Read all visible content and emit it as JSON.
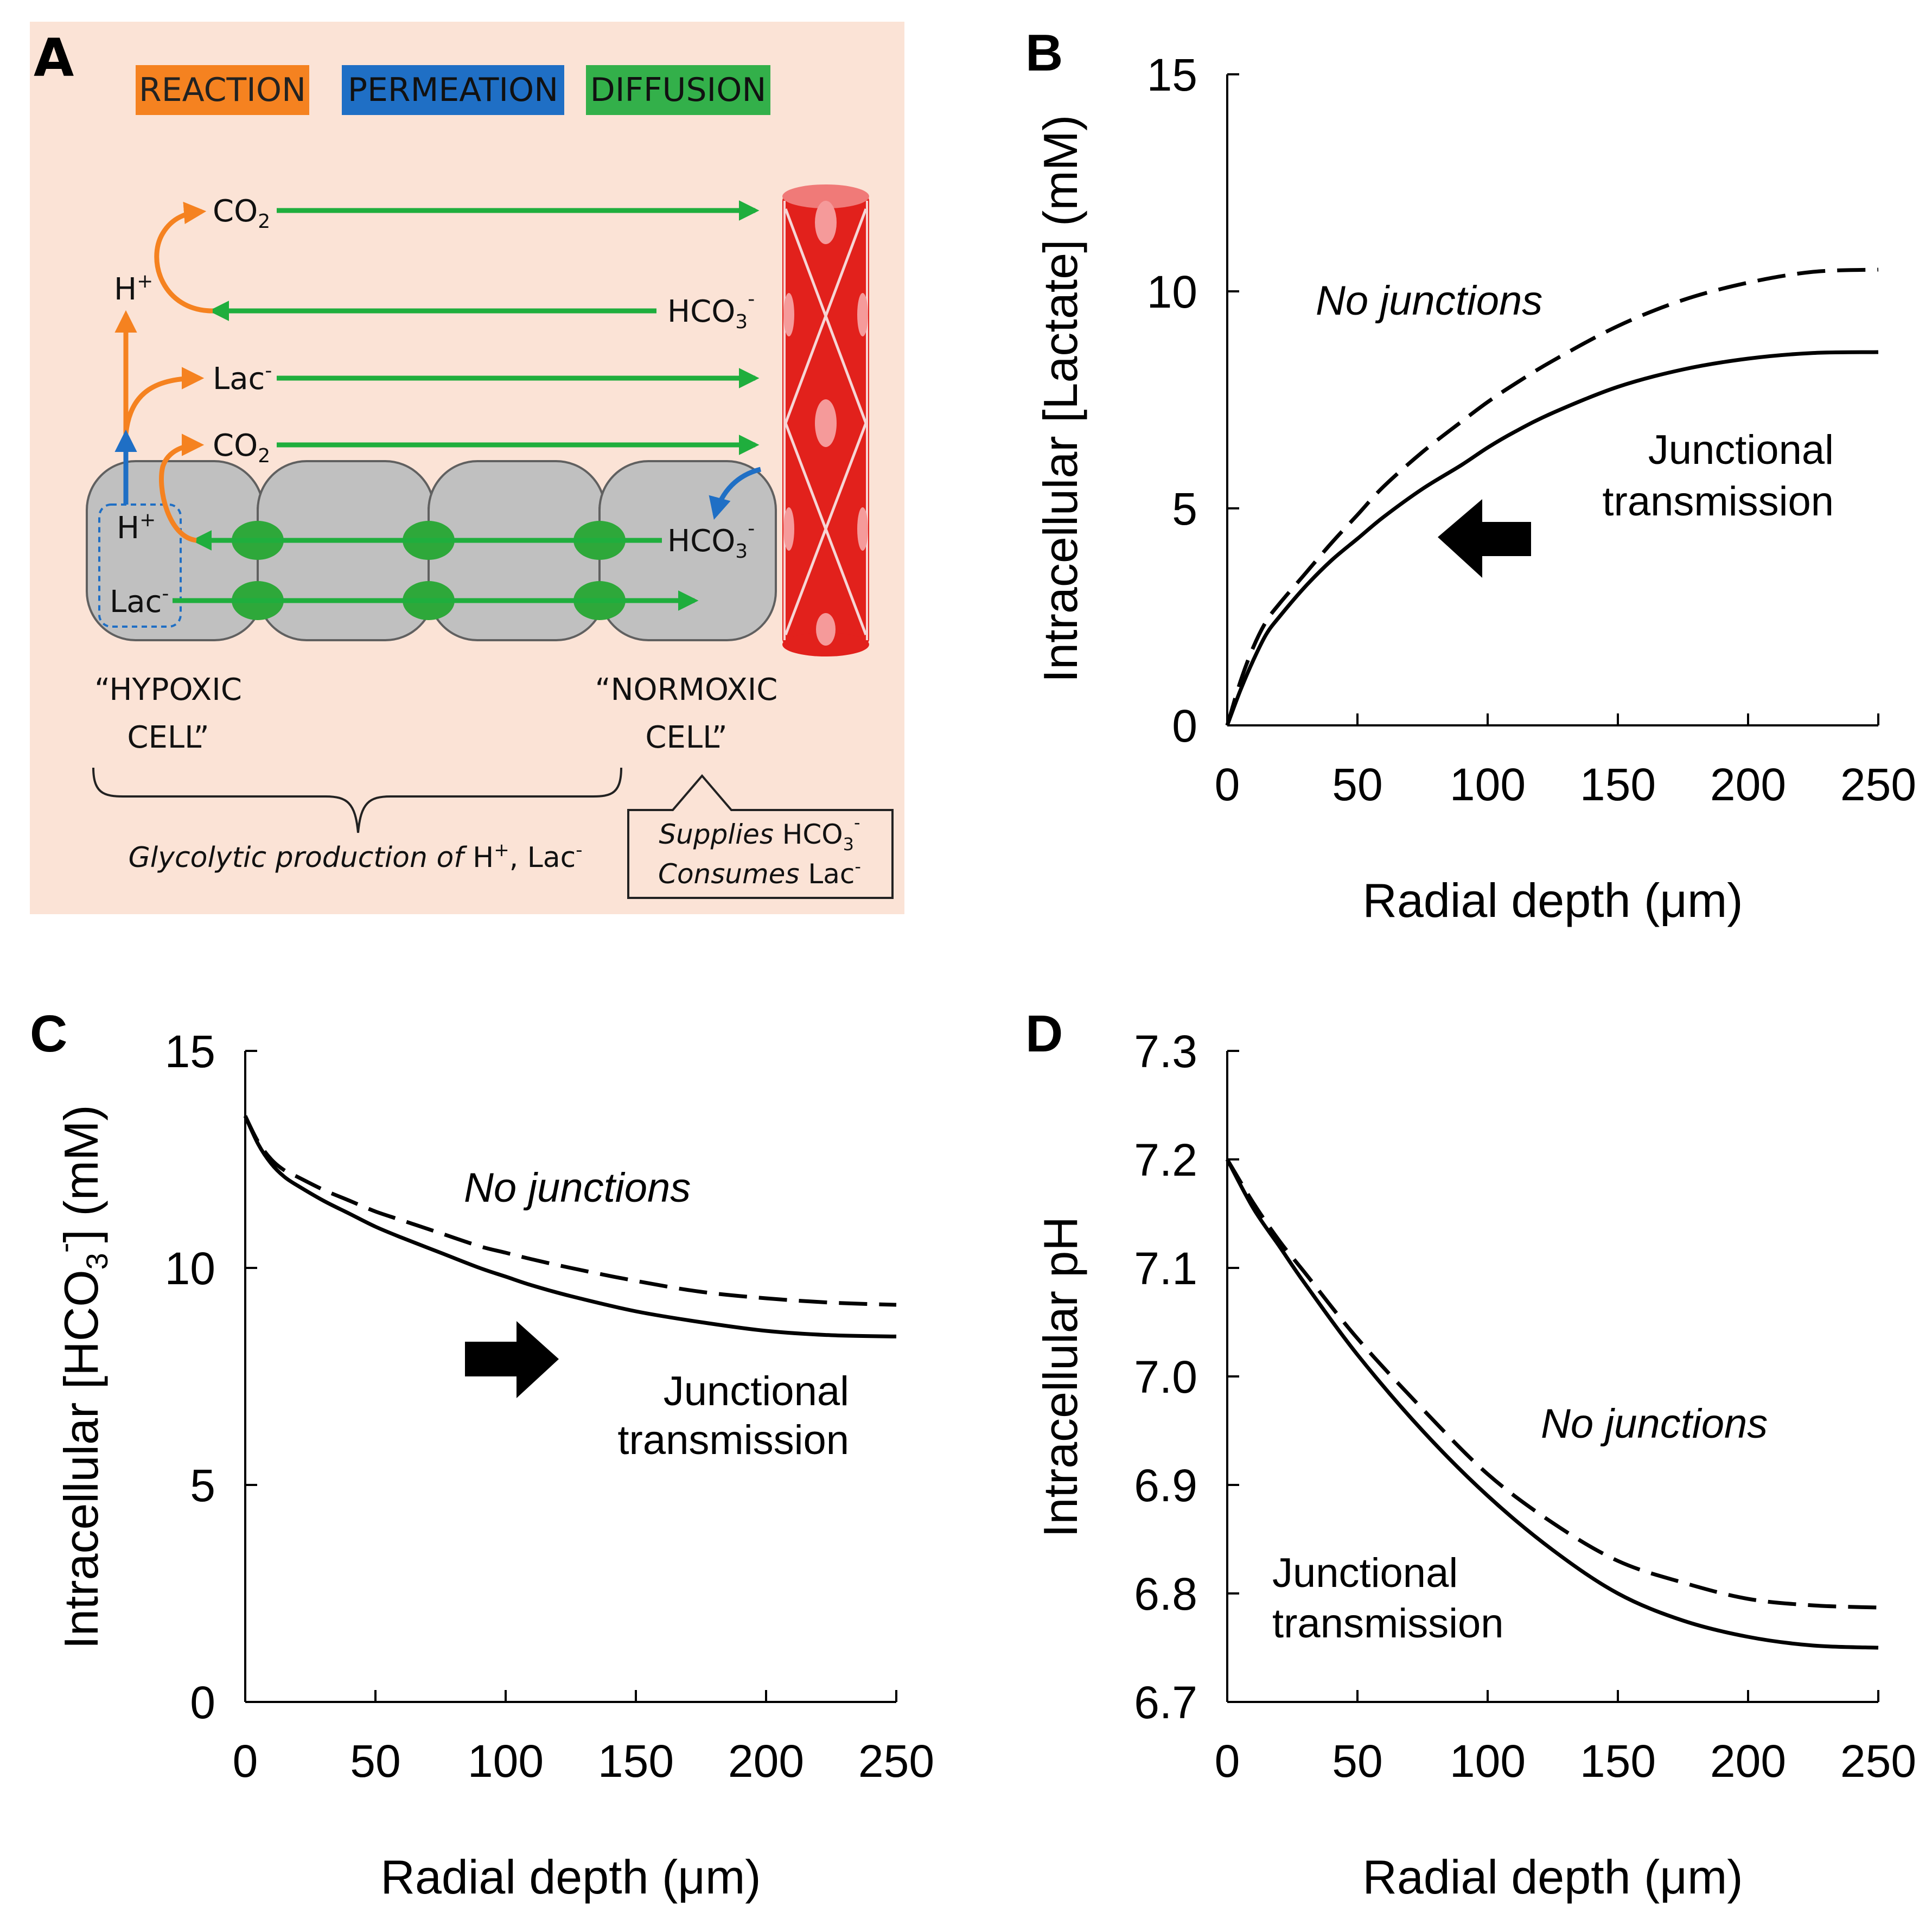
{
  "colors": {
    "background_a": "#fbe3d6",
    "reaction": "#f58220",
    "permeation": "#1f6fc5",
    "diffusion": "#1fae3d",
    "cell": "#c0c0c0",
    "vessel": "#e2211c",
    "junction": "#2ea83a",
    "ink": "#000000"
  },
  "schematic": {
    "letter": "A",
    "legend": {
      "reaction": "REACTION",
      "permeation": "PERMEATION",
      "diffusion": "DIFFUSION"
    },
    "species": {
      "co2_a": "CO",
      "co2_a_sub": "2",
      "h_top": "H",
      "h_top_sup": "+",
      "hco3_top": "HCO",
      "hco3_top_sub": "3",
      "hco3_top_sup": "-",
      "lac_top": "Lac",
      "lac_top_sup": "-",
      "co2_b": "CO",
      "co2_b_sub": "2",
      "h_cell": "H",
      "h_cell_sup": "+",
      "lac_cell": "Lac",
      "lac_cell_sup": "-",
      "hco3_cell": "HCO",
      "hco3_cell_sub": "3",
      "hco3_cell_sup": "-"
    },
    "hypoxic": {
      "line1": "“HYPOXIC",
      "line2": "CELL”"
    },
    "normoxic": {
      "line1": "“NORMOXIC",
      "line2": "CELL”"
    },
    "glycolytic": {
      "italic": "Glycolytic production of",
      "h": " H",
      "h_sup": "+",
      "lac": ", Lac",
      "lac_sup": "-"
    },
    "supplies": {
      "italic": "Supplies",
      "hco3": " HCO",
      "hco3_sub": "3",
      "hco3_sup": "-"
    },
    "consumes": {
      "italic": "Consumes",
      "lac": " Lac",
      "lac_sup": "-"
    }
  },
  "chart_data": [
    {
      "panel": "B",
      "type": "line",
      "title": "",
      "xlabel": "Radial depth (μm)",
      "ylabel": "Intracellular [Lactate] (mM)",
      "xlim": [
        0,
        250
      ],
      "ylim": [
        0,
        15
      ],
      "xticks": [
        "0",
        "50",
        "100",
        "150",
        "200",
        "250"
      ],
      "yticks": [
        "0",
        "5",
        "10",
        "15"
      ],
      "x": [
        0,
        5,
        10,
        15,
        20,
        30,
        40,
        50,
        60,
        75,
        90,
        100,
        110,
        125,
        150,
        175,
        200,
        225,
        250
      ],
      "series": [
        {
          "name": "No junctions",
          "style": "dashed",
          "values": [
            0,
            1.0,
            1.8,
            2.4,
            2.8,
            3.5,
            4.2,
            4.85,
            5.5,
            6.3,
            7.0,
            7.45,
            7.85,
            8.4,
            9.2,
            9.8,
            10.2,
            10.45,
            10.5
          ]
        },
        {
          "name": "Junctional transmission",
          "style": "solid",
          "values": [
            0,
            0.8,
            1.5,
            2.1,
            2.5,
            3.2,
            3.8,
            4.3,
            4.8,
            5.45,
            6.0,
            6.4,
            6.75,
            7.2,
            7.8,
            8.2,
            8.45,
            8.58,
            8.6
          ]
        }
      ],
      "annotations": {
        "no_junctions": "No junctions",
        "junctional_line1": "Junctional",
        "junctional_line2": "transmission",
        "arrow_direction": "left"
      }
    },
    {
      "panel": "C",
      "type": "line",
      "title": "",
      "xlabel": "Radial depth (μm)",
      "ylabel_prefix": "Intracellular [HCO",
      "ylabel_sub": "3",
      "ylabel_sup": "-",
      "ylabel_suffix": "] (mM)",
      "xlim": [
        0,
        250
      ],
      "ylim": [
        0,
        15
      ],
      "xticks": [
        "0",
        "50",
        "100",
        "150",
        "200",
        "250"
      ],
      "yticks": [
        "0",
        "5",
        "10",
        "15"
      ],
      "x": [
        0,
        5,
        10,
        15,
        20,
        30,
        40,
        50,
        60,
        75,
        90,
        100,
        110,
        125,
        150,
        175,
        200,
        225,
        250
      ],
      "series": [
        {
          "name": "No junctions",
          "style": "dashed",
          "values": [
            13.5,
            12.9,
            12.5,
            12.25,
            12.1,
            11.8,
            11.55,
            11.3,
            11.1,
            10.8,
            10.5,
            10.35,
            10.2,
            10.0,
            9.7,
            9.45,
            9.3,
            9.2,
            9.15
          ]
        },
        {
          "name": "Junctional transmission",
          "style": "solid",
          "values": [
            13.5,
            12.85,
            12.4,
            12.1,
            11.9,
            11.55,
            11.25,
            10.95,
            10.7,
            10.35,
            10.0,
            9.8,
            9.6,
            9.35,
            9.0,
            8.75,
            8.55,
            8.45,
            8.42
          ]
        }
      ],
      "annotations": {
        "no_junctions": "No junctions",
        "junctional_line1": "Junctional",
        "junctional_line2": "transmission",
        "arrow_direction": "right"
      }
    },
    {
      "panel": "D",
      "type": "line",
      "title": "",
      "xlabel": "Radial depth (μm)",
      "ylabel": "Intracellular pH",
      "xlim": [
        0,
        250
      ],
      "ylim": [
        6.7,
        7.3
      ],
      "xticks": [
        "0",
        "50",
        "100",
        "150",
        "200",
        "250"
      ],
      "yticks": [
        "6.7",
        "6.8",
        "6.9",
        "7.0",
        "7.1",
        "7.2",
        "7.3"
      ],
      "x": [
        0,
        10,
        20,
        30,
        50,
        75,
        100,
        125,
        150,
        175,
        200,
        225,
        250
      ],
      "series": [
        {
          "name": "No junctions",
          "style": "dashed",
          "values": [
            7.2,
            7.16,
            7.125,
            7.095,
            7.035,
            6.97,
            6.91,
            6.865,
            6.83,
            6.81,
            6.795,
            6.789,
            6.787
          ]
        },
        {
          "name": "Junctional transmission",
          "style": "solid",
          "values": [
            7.2,
            7.155,
            7.12,
            7.085,
            7.02,
            6.95,
            6.89,
            6.84,
            6.8,
            6.775,
            6.76,
            6.752,
            6.75
          ]
        }
      ],
      "annotations": {
        "no_junctions": "No junctions",
        "junctional_line1": "Junctional",
        "junctional_line2": "transmission"
      }
    }
  ]
}
